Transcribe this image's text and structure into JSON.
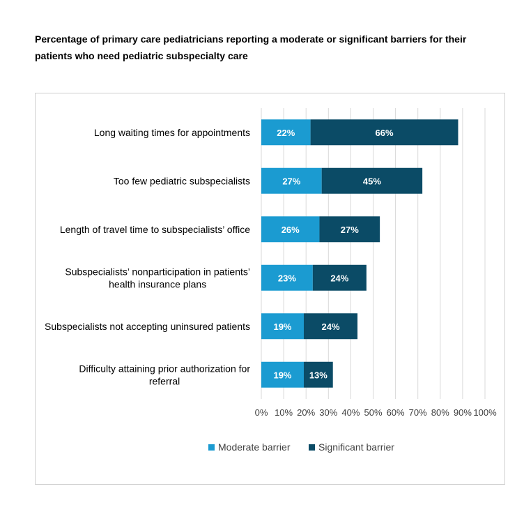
{
  "title": "Percentage of primary care pediatricians reporting a moderate or significant barriers for their patients who need pediatric subspecialty care",
  "colors": {
    "moderate": "#1b9bd1",
    "significant": "#0b4b66",
    "grid": "#d9d9d9"
  },
  "legend": {
    "moderate": "Moderate barrier",
    "significant": "Significant barrier"
  },
  "chart_data": {
    "type": "bar",
    "orientation": "horizontal",
    "stacked": true,
    "title": "Percentage of primary care pediatricians reporting a moderate or significant barriers for their patients who need pediatric subspecialty care",
    "categories": [
      [
        "Long waiting times for appointments"
      ],
      [
        "Too few pediatric subspecialists"
      ],
      [
        "Length of travel time to subspecialists’ office"
      ],
      [
        "Subspecialists’ nonparticipation in patients’",
        "health insurance plans"
      ],
      [
        "Subspecialists not accepting uninsured patients"
      ],
      [
        "Difficulty attaining prior authorization for",
        "referral"
      ]
    ],
    "series": [
      {
        "name": "Moderate barrier",
        "values": [
          22,
          27,
          26,
          23,
          19,
          19
        ],
        "labels": [
          "22%",
          "27%",
          "26%",
          "23%",
          "19%",
          "19%"
        ]
      },
      {
        "name": "Significant barrier",
        "values": [
          66,
          45,
          27,
          24,
          24,
          13
        ],
        "labels": [
          "66%",
          "45%",
          "27%",
          "24%",
          "24%",
          "13%"
        ]
      }
    ],
    "xlim": [
      0,
      100
    ],
    "xticks": [
      "0%",
      "10%",
      "20%",
      "30%",
      "40%",
      "50%",
      "60%",
      "70%",
      "80%",
      "90%",
      "100%"
    ],
    "grid": true,
    "legend_position": "bottom"
  }
}
